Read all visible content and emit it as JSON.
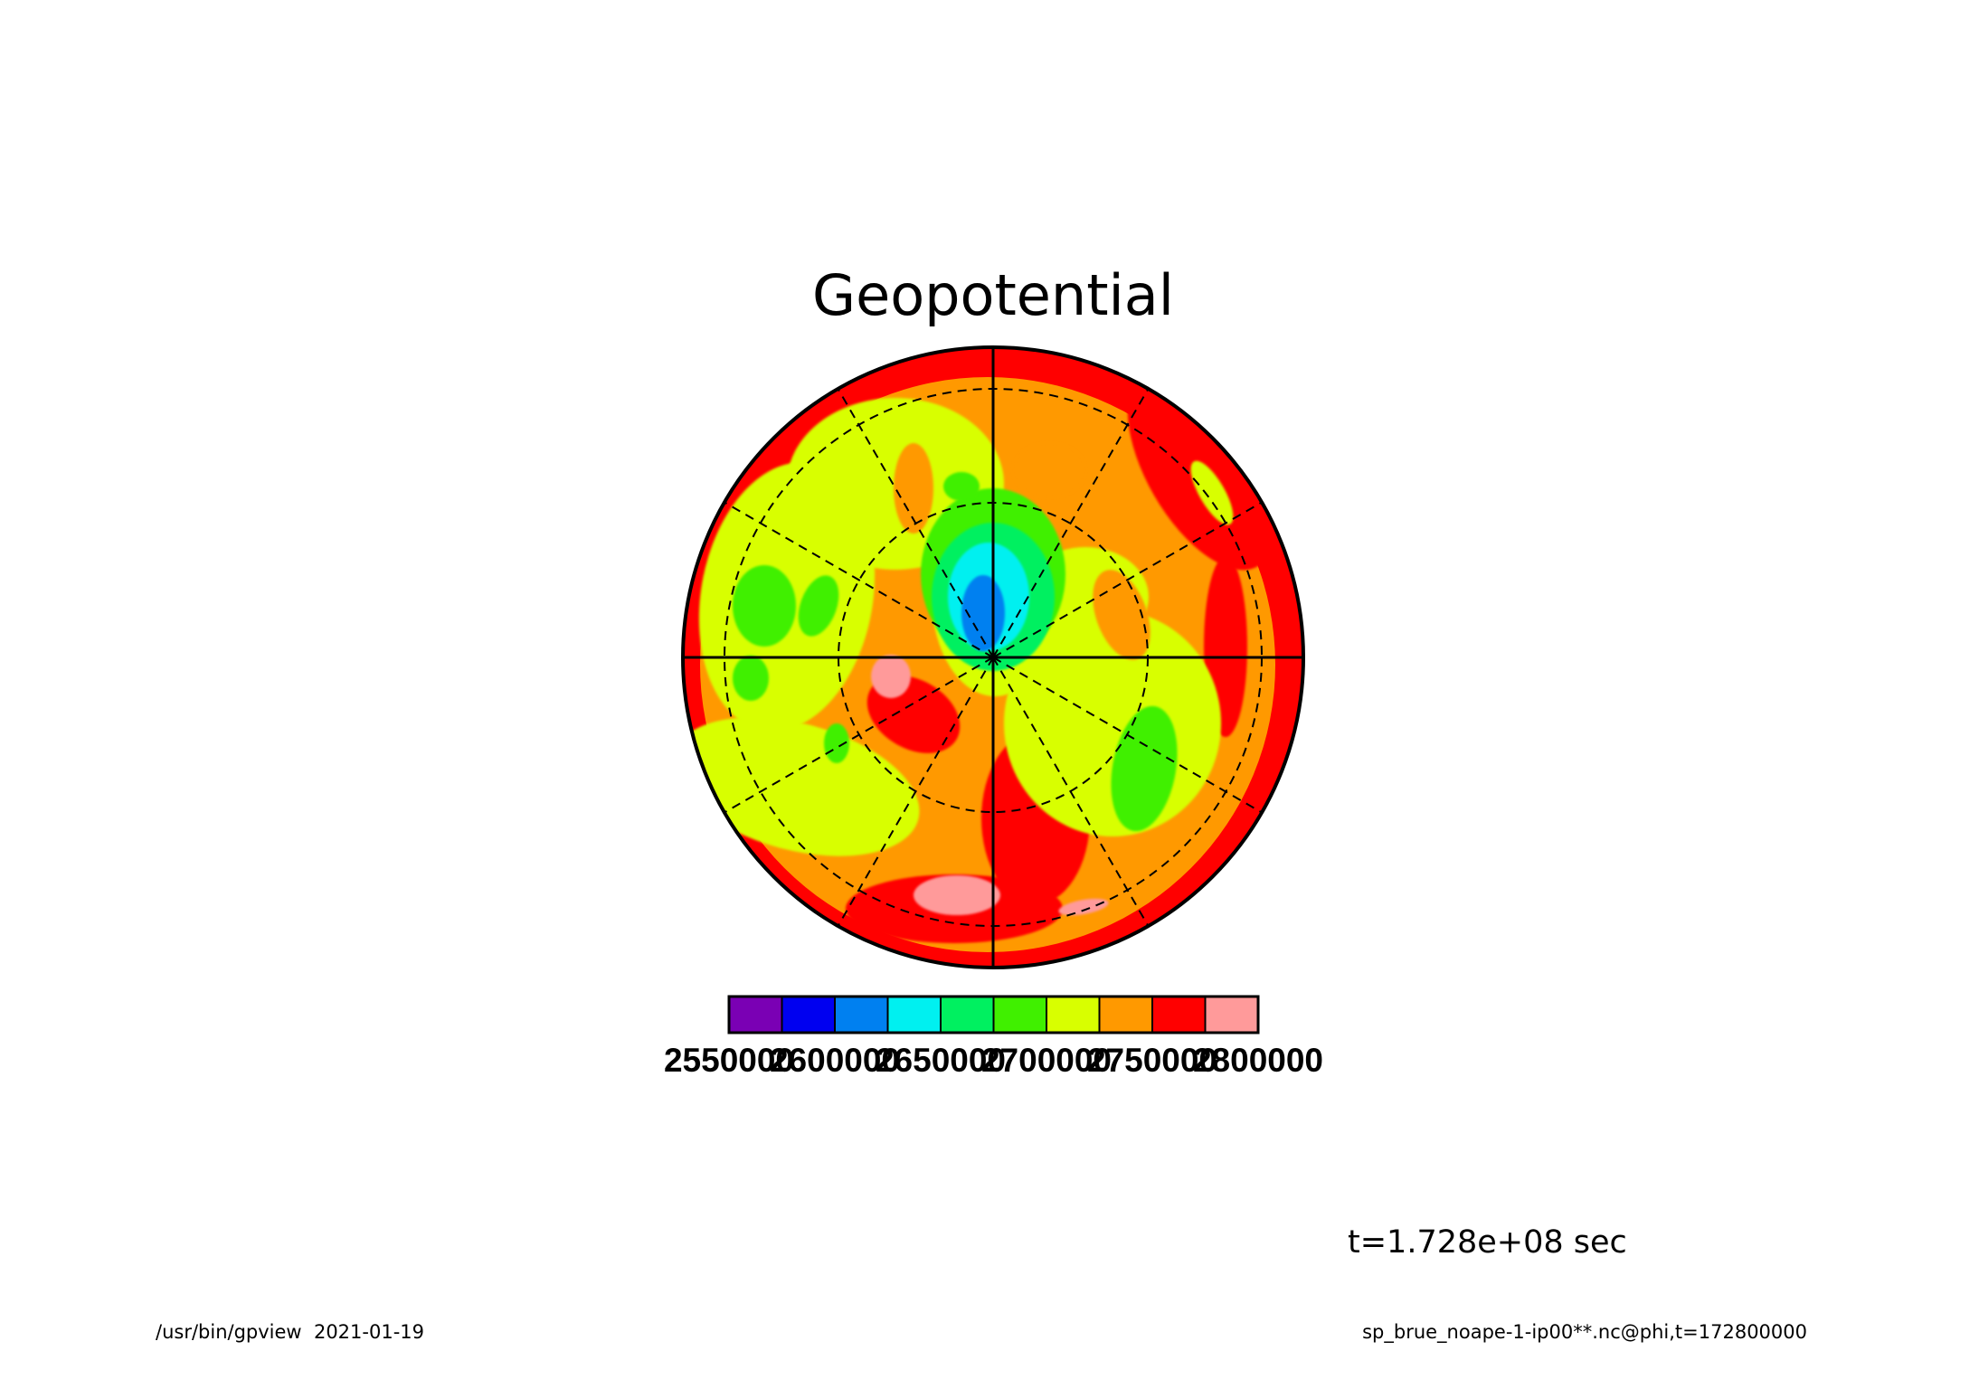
{
  "chart_data": {
    "type": "heatmap",
    "title": "Geopotential",
    "projection": "polar",
    "colorbar": {
      "levels": [
        2550000,
        2600000,
        2650000,
        2700000,
        2750000,
        2800000
      ],
      "tick_labels": [
        "2550000",
        "2600000",
        "2650000",
        "2700000",
        "2750000",
        "2800000"
      ],
      "colors": [
        "#7a00b4",
        "#0000f0",
        "#0080f0",
        "#00f0f0",
        "#00f060",
        "#40f000",
        "#d8ff00",
        "#ff9900",
        "#ff0000",
        "#ff9a9a"
      ]
    },
    "time_label": "t=1.728e+08 sec",
    "color_levels": {
      "blue": "#0080f0",
      "cyan": "#00f0f0",
      "green_teal": "#00f060",
      "green": "#40f000",
      "yellow": "#d8ff00",
      "orange": "#ff9900",
      "red": "#ff0000",
      "pink": "#ff9a9a"
    }
  },
  "footer": {
    "left": "/usr/bin/gpview  2021-01-19",
    "right": "sp_brue_noape-1-ip00**.nc@phi,t=172800000"
  }
}
